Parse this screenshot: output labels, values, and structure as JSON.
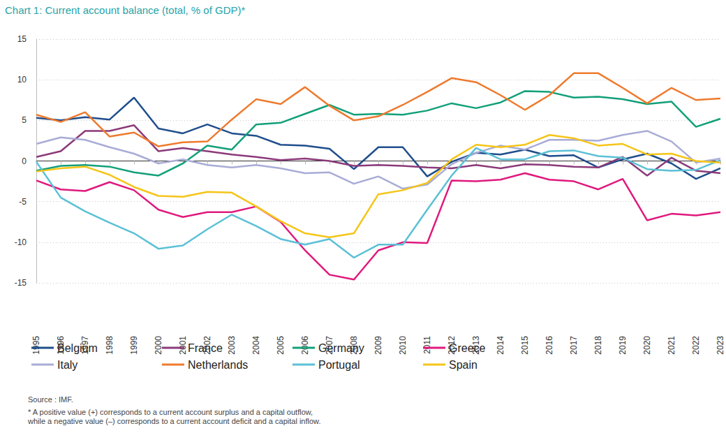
{
  "chart_data": {
    "type": "line",
    "title": "Chart 1: Current account balance (total, % of GDP)*",
    "categories": [
      "1995",
      "1996",
      "1997",
      "1998",
      "1999",
      "2000",
      "2001",
      "2002",
      "2003",
      "2004",
      "2005",
      "2006",
      "2007",
      "2008",
      "2009",
      "2010",
      "2011",
      "2012",
      "2013",
      "2014",
      "2015",
      "2016",
      "2017",
      "2018",
      "2019",
      "2020",
      "2021",
      "2022",
      "2023"
    ],
    "series": [
      {
        "name": "Belgium",
        "color": "#1f4e8c",
        "values": [
          5.3,
          5.0,
          5.4,
          5.1,
          7.8,
          4.0,
          3.4,
          4.5,
          3.4,
          3.1,
          2.0,
          1.9,
          1.5,
          -1.0,
          1.7,
          1.7,
          -1.9,
          -0.1,
          1.0,
          0.8,
          1.4,
          0.6,
          0.7,
          -0.8,
          0.2,
          0.9,
          -0.3,
          -2.2,
          -0.9
        ]
      },
      {
        "name": "France",
        "color": "#8b3a7a",
        "values": [
          0.5,
          1.2,
          3.7,
          3.7,
          4.4,
          1.2,
          1.6,
          1.2,
          0.8,
          0.5,
          0.1,
          0.3,
          0.0,
          -0.6,
          -0.5,
          -0.6,
          -0.8,
          -0.9,
          -0.5,
          -0.9,
          -0.4,
          -0.5,
          -0.7,
          -0.8,
          0.5,
          -1.8,
          0.4,
          -1.2,
          -1.5
        ]
      },
      {
        "name": "Germany",
        "color": "#12a079",
        "values": [
          -1.2,
          -0.6,
          -0.5,
          -0.7,
          -1.4,
          -1.8,
          -0.3,
          1.9,
          1.4,
          4.5,
          4.7,
          5.8,
          6.9,
          5.7,
          5.8,
          5.7,
          6.2,
          7.1,
          6.5,
          7.2,
          8.6,
          8.5,
          7.8,
          7.9,
          7.6,
          7.0,
          7.3,
          4.2,
          5.2
        ]
      },
      {
        "name": "Greece",
        "color": "#e0197d",
        "values": [
          -2.4,
          -3.5,
          -3.7,
          -2.6,
          -3.6,
          -6.0,
          -6.9,
          -6.3,
          -6.3,
          -5.6,
          -7.5,
          -11.0,
          -14.0,
          -14.6,
          -11.0,
          -10.0,
          -10.1,
          -2.4,
          -2.5,
          -2.3,
          -1.5,
          -2.3,
          -2.5,
          -3.5,
          -2.2,
          -7.3,
          -6.5,
          -6.7,
          -6.3
        ]
      },
      {
        "name": "Italy",
        "color": "#a9acd6",
        "values": [
          2.1,
          2.9,
          2.6,
          1.7,
          0.9,
          -0.3,
          0.2,
          -0.5,
          -0.8,
          -0.5,
          -0.9,
          -1.5,
          -1.4,
          -2.8,
          -1.9,
          -3.4,
          -2.9,
          -0.4,
          1.0,
          1.9,
          1.4,
          2.6,
          2.6,
          2.5,
          3.2,
          3.7,
          2.4,
          -0.2,
          0.3
        ]
      },
      {
        "name": "Netherlands",
        "color": "#ee7a2d",
        "values": [
          5.7,
          4.8,
          6.0,
          3.0,
          3.5,
          1.8,
          2.3,
          2.4,
          5.1,
          7.6,
          7.0,
          9.1,
          6.8,
          5.0,
          5.5,
          6.9,
          8.5,
          10.2,
          9.7,
          8.1,
          6.3,
          8.1,
          10.8,
          10.8,
          9.0,
          7.1,
          9.0,
          7.5,
          7.7
        ]
      },
      {
        "name": "Portugal",
        "color": "#5bc0d6",
        "values": [
          -0.1,
          -4.5,
          -6.2,
          -7.6,
          -8.9,
          -10.8,
          -10.4,
          -8.4,
          -6.6,
          -8.0,
          -9.6,
          -10.3,
          -9.6,
          -11.9,
          -10.3,
          -10.3,
          -6.0,
          -1.8,
          1.6,
          0.2,
          0.2,
          1.2,
          1.3,
          0.6,
          0.4,
          -1.0,
          -1.2,
          -1.1,
          0.1
        ]
      },
      {
        "name": "Spain",
        "color": "#f5c518",
        "values": [
          -1.3,
          -0.9,
          -0.7,
          -1.7,
          -3.2,
          -4.3,
          -4.4,
          -3.8,
          -3.9,
          -5.6,
          -7.4,
          -8.9,
          -9.4,
          -8.9,
          -4.1,
          -3.6,
          -2.7,
          0.2,
          2.0,
          1.7,
          2.0,
          3.2,
          2.8,
          1.9,
          2.1,
          0.8,
          0.9,
          0.0,
          -0.2
        ]
      }
    ],
    "ylim": [
      -15,
      15
    ],
    "yticks": [
      -15,
      -10,
      -5,
      0,
      5,
      10,
      15
    ],
    "grid": true,
    "legend": "bottom",
    "source": "Source : IMF.",
    "notes": [
      "* A positive value (+) corresponds to a current account surplus and a capital outflow,",
      "while a negative value (–) corresponds to a current account deficit and a capital inflow."
    ]
  }
}
